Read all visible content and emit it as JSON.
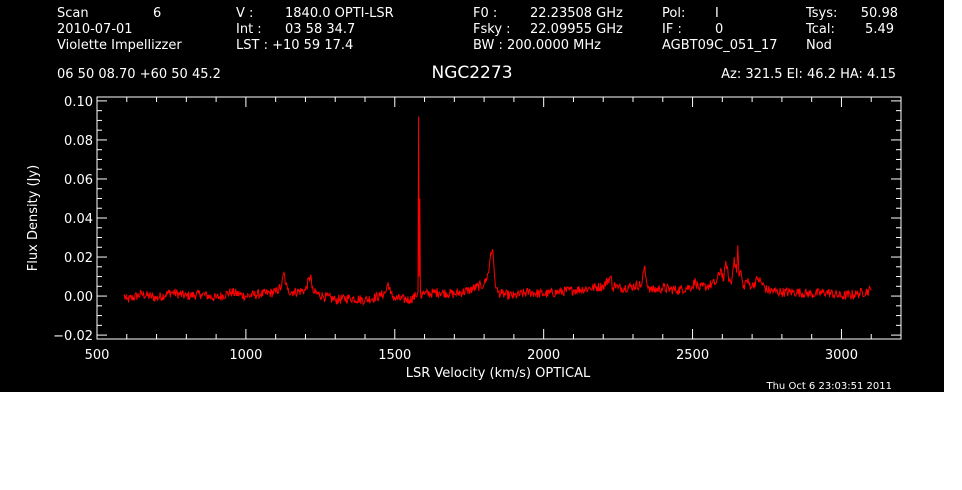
{
  "header": {
    "col1": [
      "Scan",
      "2010-07-01",
      "Violette Impellizzer"
    ],
    "col1b": [
      "6"
    ],
    "col2": [
      "V    :",
      "Int   :",
      "LST : +10 59 17.4"
    ],
    "col2b": [
      "1840.0 OPTI-LSR",
      "03 58 34.7"
    ],
    "col3": [
      "F0    :",
      "Fsky :",
      "BW    : 200.0000 MHz"
    ],
    "col3b": [
      "22.23508 GHz",
      "22.09955 GHz"
    ],
    "col4": [
      "Pol:",
      "IF :",
      "AGBT09C_051_17"
    ],
    "col4b": [
      "I",
      "0"
    ],
    "col5": [
      "Tsys:",
      "Tcal:",
      "Nod"
    ],
    "col5b": [
      "50.98",
      "5.49"
    ]
  },
  "position": "06 50 08.70   +60 50 45.2",
  "source_name": "NGC2273",
  "pointing": "Az: 321.5   El:  46.2   HA:  4.15",
  "timestamp": "Thu Oct  6 23:03:51 2011",
  "colors": {
    "background": "#000000",
    "axes": "#ffffff",
    "spectrum": "#ff0000"
  },
  "chart_data": {
    "type": "line",
    "title": "NGC2273",
    "xlabel": "LSR Velocity (km/s) OPTICAL",
    "ylabel": "Flux Density (Jy)",
    "xlim": [
      500,
      3200
    ],
    "ylim": [
      -0.022,
      0.102
    ],
    "xticks": [
      500,
      1000,
      1500,
      2000,
      2500,
      3000
    ],
    "xtick_labels": [
      "500",
      "1000",
      "1500",
      "2000",
      "2500",
      "3000"
    ],
    "yticks": [
      -0.02,
      0.0,
      0.02,
      0.04,
      0.06,
      0.08,
      0.1
    ],
    "ytick_labels": [
      "−0.02",
      "0.00",
      "0.02",
      "0.04",
      "0.06",
      "0.08",
      "0.10"
    ],
    "grid": false,
    "series": [
      {
        "x": [
          590,
          600,
          650,
          700,
          750,
          800,
          850,
          900,
          950,
          1000,
          1050,
          1100,
          1120,
          1128,
          1134,
          1140,
          1160,
          1200,
          1218,
          1222,
          1226,
          1260,
          1300,
          1350,
          1400,
          1450,
          1470,
          1478,
          1486,
          1500,
          1550,
          1570,
          1578,
          1580,
          1582,
          1584,
          1586,
          1588,
          1592,
          1600,
          1650,
          1700,
          1750,
          1800,
          1815,
          1822,
          1828,
          1834,
          1840,
          1846,
          1860,
          1900,
          1950,
          2000,
          2050,
          2100,
          2150,
          2200,
          2225,
          2232,
          2240,
          2250,
          2300,
          2330,
          2338,
          2346,
          2360,
          2400,
          2450,
          2500,
          2510,
          2520,
          2550,
          2580,
          2595,
          2605,
          2612,
          2620,
          2630,
          2640,
          2648,
          2652,
          2656,
          2662,
          2670,
          2680,
          2700,
          2720,
          2750,
          2800,
          2850,
          2900,
          2950,
          3000,
          3050,
          3100
        ],
        "y": [
          0.0,
          -0.002,
          0.001,
          -0.001,
          0.002,
          0.0,
          0.001,
          -0.001,
          0.002,
          0.0,
          0.001,
          0.002,
          0.005,
          0.012,
          0.006,
          0.003,
          0.002,
          0.003,
          0.011,
          0.004,
          0.002,
          0.0,
          -0.002,
          -0.001,
          -0.002,
          0.0,
          0.002,
          0.007,
          0.001,
          -0.001,
          -0.002,
          0.0,
          0.002,
          0.092,
          0.01,
          0.05,
          0.003,
          -0.001,
          0.002,
          0.001,
          0.002,
          0.001,
          0.003,
          0.006,
          0.012,
          0.022,
          0.024,
          0.013,
          0.004,
          0.002,
          0.001,
          0.0,
          0.002,
          0.001,
          0.002,
          0.003,
          0.004,
          0.005,
          0.01,
          0.004,
          0.006,
          0.004,
          0.005,
          0.006,
          0.015,
          0.007,
          0.003,
          0.004,
          0.003,
          0.005,
          0.008,
          0.004,
          0.005,
          0.007,
          0.014,
          0.008,
          0.018,
          0.01,
          0.006,
          0.02,
          0.012,
          0.026,
          0.01,
          0.013,
          0.004,
          0.008,
          0.005,
          0.009,
          0.003,
          0.002,
          0.002,
          0.001,
          0.002,
          0.0,
          0.001,
          0.003
        ]
      }
    ]
  }
}
